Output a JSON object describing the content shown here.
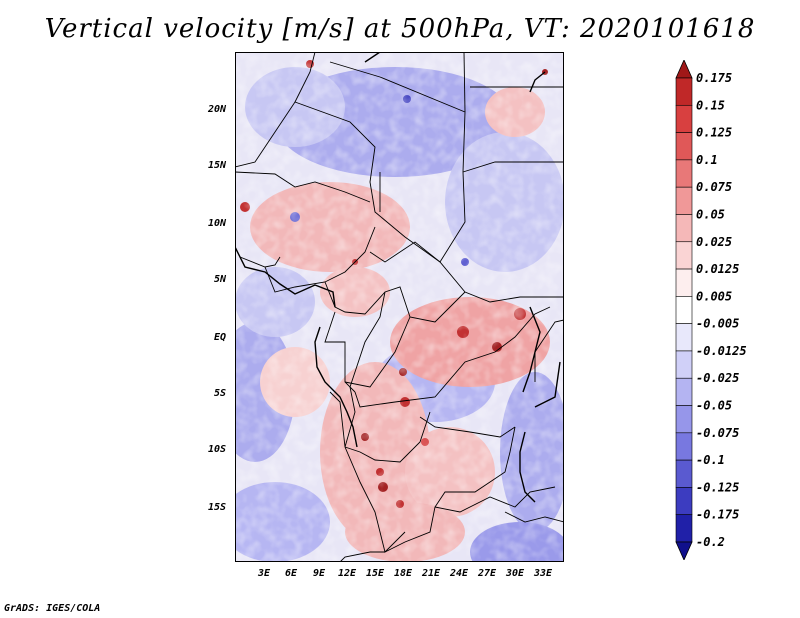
{
  "title": "Vertical velocity [m/s] at 500hPa, VT: 2020101618",
  "footer": "GrADS: IGES/COLA",
  "lat_labels": [
    "20N",
    "15N",
    "10N",
    "5N",
    "EQ",
    "5S",
    "10S",
    "15S"
  ],
  "lon_labels": [
    "3E",
    "6E",
    "9E",
    "12E",
    "15E",
    "18E",
    "21E",
    "24E",
    "27E",
    "30E",
    "33E"
  ],
  "colorbar": {
    "levels": [
      "0.175",
      "0.15",
      "0.125",
      "0.1",
      "0.075",
      "0.05",
      "0.025",
      "0.0125",
      "0.005",
      "-0.005",
      "-0.0125",
      "-0.025",
      "-0.05",
      "-0.075",
      "-0.1",
      "-0.125",
      "-0.175",
      "-0.2"
    ],
    "colors": [
      "#a01818",
      "#c02828",
      "#d84040",
      "#e05858",
      "#e87878",
      "#f09898",
      "#f5b8b8",
      "#fad4d4",
      "#fdeeee",
      "#ffffff",
      "#e8e8fb",
      "#d0d0f8",
      "#b4b4f2",
      "#9696ea",
      "#7878e0",
      "#5a5ad0",
      "#3c3cc0",
      "#2020a8",
      "#10108c"
    ]
  }
}
